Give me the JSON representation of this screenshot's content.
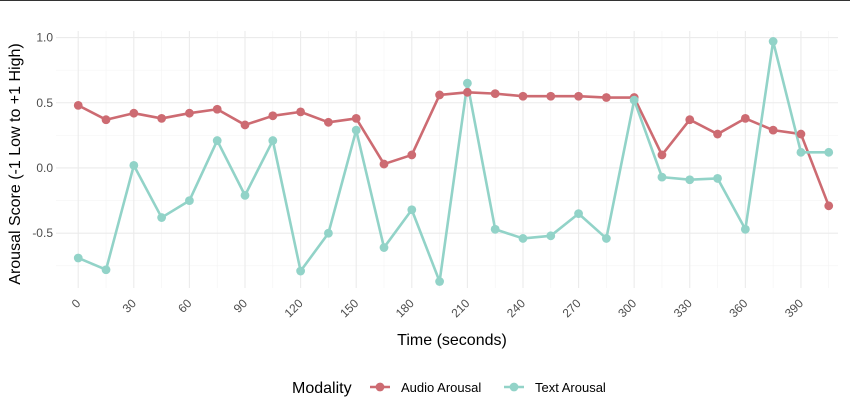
{
  "chart_data": {
    "type": "line",
    "xlabel": "Time (seconds)",
    "ylabel": "Arousal Score (-1 Low to +1 High)",
    "xlim": [
      -12,
      410
    ],
    "ylim": [
      -0.92,
      1.05
    ],
    "x_ticks": [
      0,
      30,
      60,
      90,
      120,
      150,
      180,
      210,
      240,
      270,
      300,
      330,
      360,
      390
    ],
    "y_ticks": [
      -0.5,
      0.0,
      0.5,
      1.0
    ],
    "y_tick_labels": [
      "-0.5",
      "0.0",
      "0.5",
      "1.0"
    ],
    "grid": true,
    "legend_title": "Modality",
    "legend_position": "bottom",
    "x": [
      0,
      15,
      30,
      45,
      60,
      75,
      90,
      105,
      120,
      135,
      150,
      165,
      180,
      195,
      210,
      225,
      240,
      255,
      270,
      285,
      300,
      315,
      330,
      345,
      360,
      375,
      390,
      405
    ],
    "series": [
      {
        "name": "Audio Arousal",
        "color": "#CD6B72",
        "values": [
          0.48,
          0.37,
          0.42,
          0.38,
          0.42,
          0.45,
          0.33,
          0.4,
          0.43,
          0.35,
          0.38,
          0.03,
          0.1,
          0.56,
          0.58,
          0.57,
          0.55,
          0.55,
          0.55,
          0.54,
          0.54,
          0.1,
          0.37,
          0.26,
          0.38,
          0.29,
          0.26,
          -0.29
        ]
      },
      {
        "name": "Text Arousal",
        "color": "#92D3C8",
        "values": [
          -0.69,
          -0.78,
          0.02,
          -0.38,
          -0.25,
          0.21,
          -0.21,
          0.21,
          -0.79,
          -0.5,
          0.29,
          -0.61,
          -0.32,
          -0.87,
          0.65,
          -0.47,
          -0.54,
          -0.52,
          -0.35,
          -0.54,
          0.52,
          -0.07,
          -0.09,
          -0.08,
          -0.47,
          0.97,
          0.12,
          0.12
        ]
      }
    ]
  }
}
